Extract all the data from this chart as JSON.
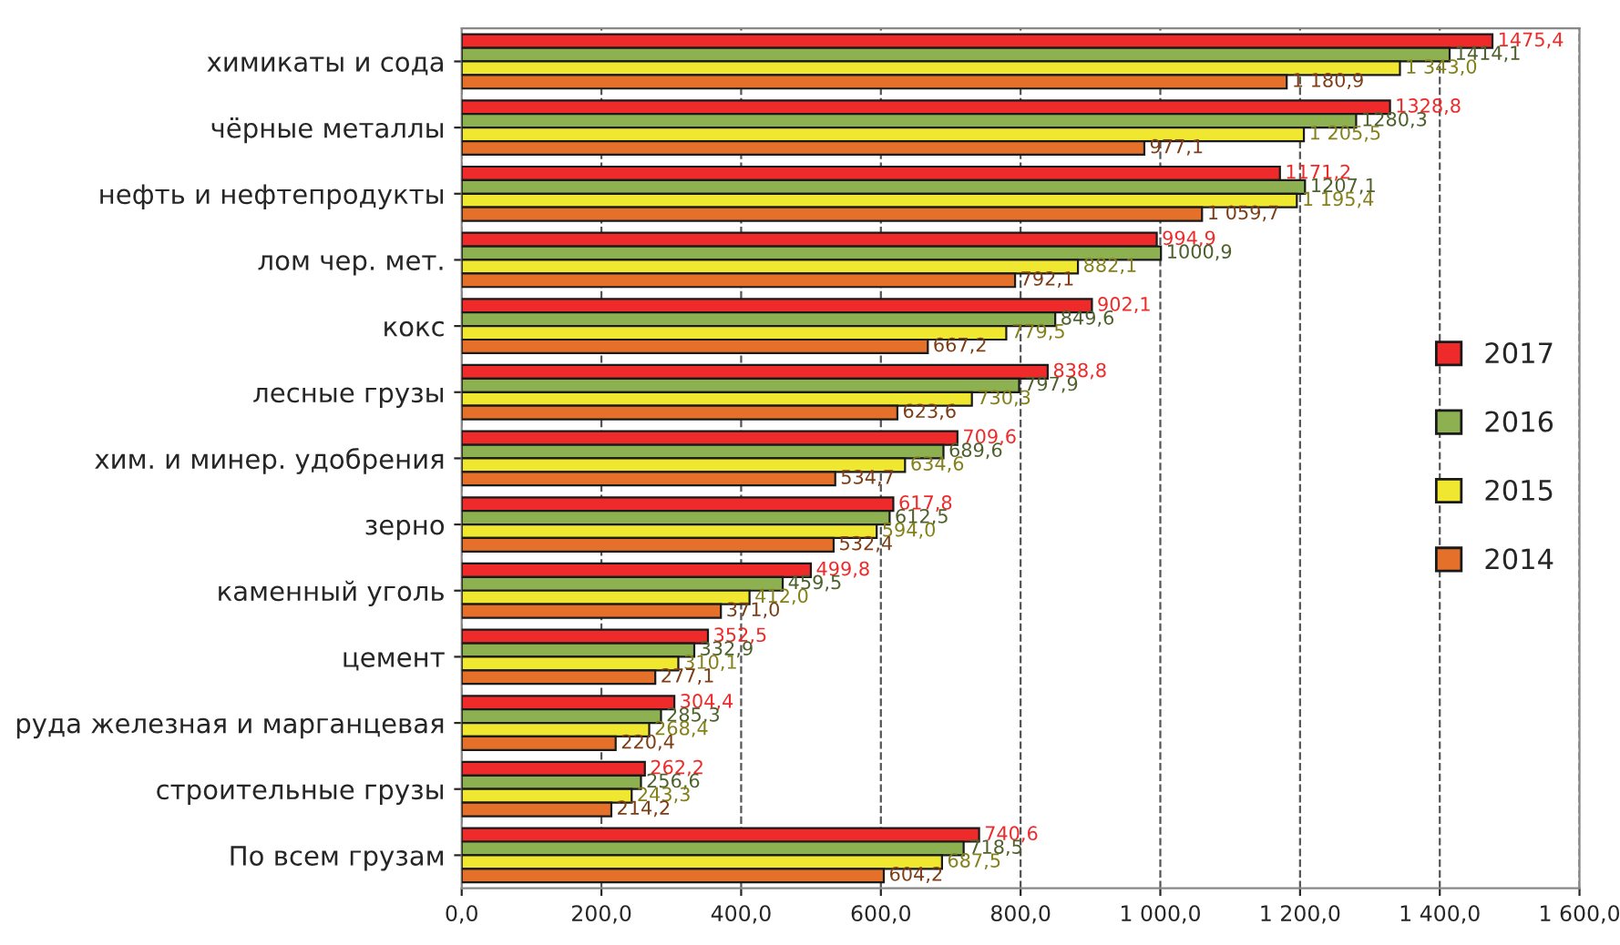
{
  "chart_data": {
    "type": "bar",
    "orientation": "horizontal",
    "categories": [
      "химикаты и сода",
      "чёрные металлы",
      "нефть и нефтепродукты",
      "лом чер. мет.",
      "кокс",
      "лесные грузы",
      "хим. и минер. удобрения",
      "зерно",
      "каменный уголь",
      "цемент",
      "руда железная и марганцевая",
      "строительные грузы",
      "По всем грузам"
    ],
    "series": [
      {
        "name": "2017",
        "color": "#ee2a2a",
        "values": [
          1475.4,
          1328.8,
          1171.2,
          994.9,
          902.1,
          838.8,
          709.6,
          617.8,
          499.8,
          352.5,
          304.4,
          262.2,
          740.6
        ],
        "value_labels": [
          "1475,4",
          "1328,8",
          "1171,2",
          "994,9",
          "902,1",
          "838,8",
          "709,6",
          "617,8",
          "499,8",
          "352,5",
          "304,4",
          "262,2",
          "740,6"
        ]
      },
      {
        "name": "2016",
        "color": "#8db050",
        "values": [
          1414.1,
          1280.3,
          1207.1,
          1000.9,
          849.6,
          797.9,
          689.6,
          612.5,
          459.5,
          332.9,
          285.3,
          256.6,
          718.5
        ],
        "value_labels": [
          "1414,1",
          "1280,3",
          "1207,1",
          "1000,9",
          "849,6",
          "797,9",
          "689,6",
          "612,5",
          "459,5",
          "332,9",
          "285,3",
          "256,6",
          "718,5"
        ]
      },
      {
        "name": "2015",
        "color": "#f0e830",
        "values": [
          1343.0,
          1205.5,
          1195.4,
          882.1,
          779.5,
          730.3,
          634.6,
          594.0,
          412.0,
          310.1,
          268.4,
          243.3,
          687.5
        ],
        "value_labels": [
          "1 343,0",
          "1 205,5",
          "1 195,4",
          "882,1",
          "779,5",
          "730,3",
          "634,6",
          "594,0",
          "412,0",
          "310,1",
          "268,4",
          "243,3",
          "687,5"
        ]
      },
      {
        "name": "2014",
        "color": "#e4702a",
        "values": [
          1180.9,
          977.1,
          1059.7,
          792.1,
          667.2,
          623.6,
          534.7,
          532.4,
          371.0,
          277.1,
          220.4,
          214.2,
          604.2
        ],
        "value_labels": [
          "1 180,9",
          "977,1",
          "1 059,7",
          "792,1",
          "667,2",
          "623,6",
          "534,7",
          "532,4",
          "371,0",
          "277,1",
          "220,4",
          "214,2",
          "604,2"
        ]
      }
    ],
    "xlim": [
      0,
      1600
    ],
    "xticks": [
      {
        "value": 0,
        "label": "0,0"
      },
      {
        "value": 200,
        "label": "200,0"
      },
      {
        "value": 400,
        "label": "400,0"
      },
      {
        "value": 600,
        "label": "600,0"
      },
      {
        "value": 800,
        "label": "800,0"
      },
      {
        "value": 1000,
        "label": "1 000,0"
      },
      {
        "value": 1200,
        "label": "1 200,0"
      },
      {
        "value": 1400,
        "label": "1 400,0"
      },
      {
        "value": 1600,
        "label": "1 600,0"
      }
    ],
    "grid": "x",
    "legend": "right"
  }
}
